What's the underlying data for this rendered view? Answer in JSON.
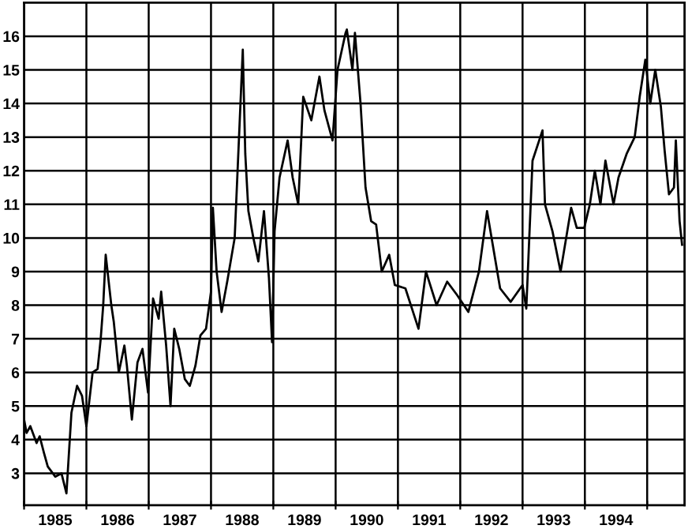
{
  "chart_data": {
    "type": "line",
    "x": [
      1985.0,
      1985.04,
      1985.1,
      1985.2,
      1985.25,
      1985.32,
      1985.38,
      1985.5,
      1985.6,
      1985.68,
      1985.76,
      1985.85,
      1985.93,
      1986.0,
      1986.1,
      1986.18,
      1986.23,
      1986.27,
      1986.31,
      1986.4,
      1986.44,
      1986.52,
      1986.61,
      1986.65,
      1986.73,
      1986.82,
      1986.9,
      1986.99,
      1987.07,
      1987.16,
      1987.2,
      1987.28,
      1987.35,
      1987.41,
      1987.49,
      1987.58,
      1987.66,
      1987.75,
      1987.83,
      1987.92,
      1988.0,
      1988.03,
      1988.09,
      1988.17,
      1988.26,
      1988.38,
      1988.51,
      1988.55,
      1988.6,
      1988.68,
      1988.76,
      1988.85,
      1988.93,
      1988.98,
      1989.02,
      1989.1,
      1989.23,
      1989.31,
      1989.4,
      1989.48,
      1989.61,
      1989.74,
      1989.82,
      1989.95,
      1990.03,
      1990.16,
      1990.18,
      1990.27,
      1990.31,
      1990.4,
      1990.48,
      1990.57,
      1990.65,
      1990.74,
      1990.86,
      1990.95,
      1991.12,
      1991.33,
      1991.45,
      1991.62,
      1991.79,
      1991.95,
      1992.13,
      1992.3,
      1992.43,
      1992.64,
      1992.81,
      1993.0,
      1993.06,
      1993.16,
      1993.32,
      1993.36,
      1993.48,
      1993.61,
      1993.7,
      1993.78,
      1993.87,
      1993.99,
      1994.08,
      1994.16,
      1994.25,
      1994.33,
      1994.46,
      1994.54,
      1994.67,
      1994.8,
      1994.88,
      1994.97,
      1995.05,
      1995.13,
      1995.22,
      1995.28,
      1995.35,
      1995.43,
      1995.46,
      1995.52,
      1995.56
    ],
    "values": [
      4.6,
      4.2,
      4.4,
      3.9,
      4.1,
      3.6,
      3.2,
      2.9,
      3.0,
      2.4,
      4.8,
      5.6,
      5.3,
      4.4,
      6.0,
      6.1,
      7.0,
      8.0,
      9.5,
      8.0,
      7.5,
      6.0,
      6.8,
      6.2,
      4.6,
      6.3,
      6.7,
      5.4,
      8.2,
      7.6,
      8.4,
      6.8,
      5.0,
      7.3,
      6.7,
      5.8,
      5.6,
      6.2,
      7.1,
      7.3,
      8.4,
      10.9,
      9.0,
      7.8,
      8.7,
      10.0,
      15.6,
      12.5,
      10.8,
      10.0,
      9.3,
      10.8,
      8.8,
      6.9,
      10.2,
      11.8,
      12.9,
      11.8,
      11.0,
      14.2,
      13.5,
      14.8,
      13.8,
      12.9,
      15.0,
      16.1,
      16.2,
      15.0,
      16.1,
      14.0,
      11.5,
      10.5,
      10.4,
      9.0,
      9.5,
      8.6,
      8.5,
      7.3,
      9.0,
      8.0,
      8.7,
      8.3,
      7.8,
      9.0,
      10.8,
      8.5,
      8.1,
      8.6,
      7.9,
      12.3,
      13.2,
      11.0,
      10.2,
      9.0,
      10.0,
      10.9,
      10.3,
      10.3,
      11.0,
      12.0,
      11.0,
      12.3,
      11.0,
      11.8,
      12.5,
      13.0,
      14.2,
      15.3,
      14.0,
      15.0,
      13.9,
      12.6,
      11.3,
      11.5,
      12.9,
      10.5,
      9.8
    ],
    "color": "#000000",
    "xlim": [
      1985.0,
      1995.6
    ],
    "xticks": [
      {
        "value": 1985,
        "label": null
      },
      {
        "value": 1985.5,
        "label": "1985"
      },
      {
        "value": 1986,
        "label": null
      },
      {
        "value": 1986.5,
        "label": "1986"
      },
      {
        "value": 1987,
        "label": null
      },
      {
        "value": 1987.5,
        "label": "1987"
      },
      {
        "value": 1988,
        "label": null
      },
      {
        "value": 1988.5,
        "label": "1988"
      },
      {
        "value": 1989,
        "label": null
      },
      {
        "value": 1989.5,
        "label": "1989"
      },
      {
        "value": 1990,
        "label": null
      },
      {
        "value": 1990.5,
        "label": "1990"
      },
      {
        "value": 1991,
        "label": null
      },
      {
        "value": 1991.5,
        "label": "1991"
      },
      {
        "value": 1992,
        "label": null
      },
      {
        "value": 1992.5,
        "label": "1992"
      },
      {
        "value": 1993,
        "label": null
      },
      {
        "value": 1993.5,
        "label": "1993"
      },
      {
        "value": 1994,
        "label": null
      },
      {
        "value": 1994.5,
        "label": "1994"
      },
      {
        "value": 1995,
        "label": null
      }
    ],
    "ylim": [
      2.05,
      17.0
    ],
    "yticks": [
      3,
      4,
      5,
      6,
      7,
      8,
      9,
      10,
      11,
      12,
      13,
      14,
      15,
      16
    ],
    "grid": true,
    "line_style": "solid",
    "marker": "none"
  }
}
